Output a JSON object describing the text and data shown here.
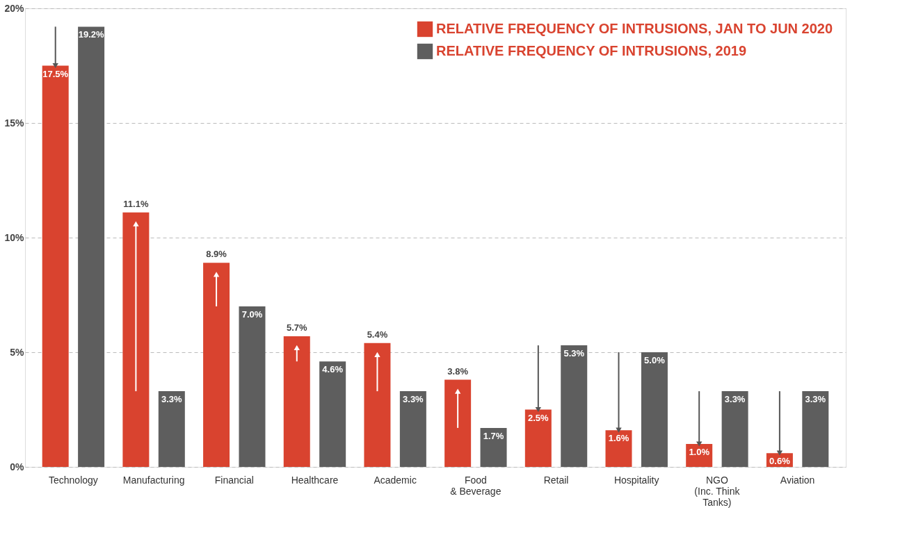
{
  "chart_data": {
    "type": "bar",
    "categories": [
      "Technology",
      "Manufacturing",
      "Financial",
      "Healthcare",
      "Academic",
      "Food\n& Beverage",
      "Retail",
      "Hospitality",
      "NGO\n(Inc. Think\nTanks)",
      "Aviation"
    ],
    "series": [
      {
        "name": "RELATIVE FREQUENCY OF INTRUSIONS, JAN TO JUN 2020",
        "color": "#d9432f",
        "values": [
          17.5,
          11.1,
          8.9,
          5.7,
          5.4,
          3.8,
          2.5,
          1.6,
          1.0,
          0.6
        ],
        "value_labels": [
          "17.5%",
          "11.1%",
          "8.9%",
          "5.7%",
          "5.4%",
          "3.8%",
          "2.5%",
          "1.6%",
          "1.0%",
          "0.6%"
        ]
      },
      {
        "name": "RELATIVE FREQUENCY OF INTRUSIONS, 2019",
        "color": "#5e5e5e",
        "values": [
          19.2,
          3.3,
          7.0,
          4.6,
          3.3,
          1.7,
          5.3,
          5.0,
          3.3,
          3.3
        ],
        "value_labels": [
          "19.2%",
          "3.3%",
          "7.0%",
          "4.6%",
          "3.3%",
          "1.7%",
          "5.3%",
          "5.0%",
          "3.3%",
          "3.3%"
        ]
      }
    ],
    "ylim": [
      0,
      20
    ],
    "yticks": [
      {
        "value": 0,
        "label": "0%"
      },
      {
        "value": 5,
        "label": "5%"
      },
      {
        "value": 10,
        "label": "10%"
      },
      {
        "value": 15,
        "label": "15%"
      },
      {
        "value": 20,
        "label": "20%"
      }
    ],
    "grid": "y",
    "legend": "top right"
  }
}
